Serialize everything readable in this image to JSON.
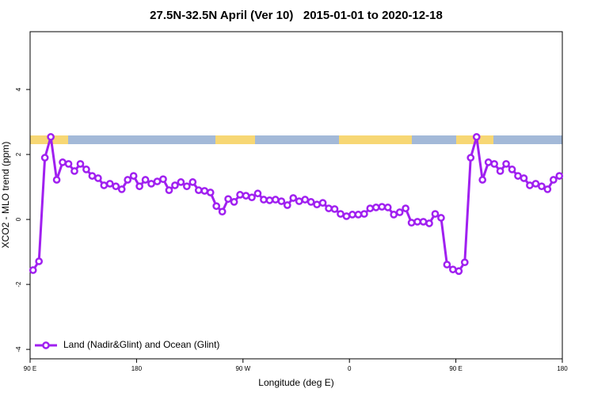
{
  "chart_data": {
    "type": "line",
    "title": "27.5N-32.5N April (Ver 10)   2015-01-01 to 2020-12-18",
    "x_label": "Longitude (deg E)",
    "y_label": "XCO2 - MLO trend (ppm)",
    "x": [
      92.5,
      97.5,
      102.5,
      107.5,
      112.5,
      117.5,
      122.5,
      127.5,
      132.5,
      137.5,
      142.5,
      147.5,
      152.5,
      157.5,
      162.5,
      167.5,
      172.5,
      177.5,
      182.5,
      187.5,
      192.5,
      197.5,
      202.5,
      207.5,
      212.5,
      217.5,
      222.5,
      227.5,
      232.5,
      237.5,
      242.5,
      247.5,
      252.5,
      257.5,
      262.5,
      267.5,
      272.5,
      277.5,
      282.5,
      287.5,
      292.5,
      297.5,
      302.5,
      307.5,
      312.5,
      317.5,
      322.5,
      327.5,
      332.5,
      337.5,
      342.5,
      347.5,
      352.5,
      357.5,
      362.5,
      367.5,
      372.5,
      377.5,
      382.5,
      387.5,
      392.5,
      397.5,
      402.5,
      407.5,
      412.5,
      417.5,
      422.5,
      427.5,
      432.5,
      437.5,
      442.5,
      447.5,
      452.5,
      457.5,
      462.5,
      467.5,
      472.5,
      477.5,
      482.5,
      487.5,
      492.5,
      497.5,
      502.5,
      507.5,
      512.5,
      517.5,
      522.5,
      527.5,
      532.5,
      537.5
    ],
    "series": [
      {
        "name": "Land (Nadir&Glint) and Ocean (Glint)",
        "color": "#a020f0",
        "values": [
          -1.56,
          -1.29,
          1.9,
          2.54,
          1.22,
          1.76,
          1.71,
          1.49,
          1.71,
          1.54,
          1.34,
          1.27,
          1.05,
          1.1,
          1.02,
          0.93,
          1.22,
          1.34,
          1.02,
          1.22,
          1.1,
          1.17,
          1.24,
          0.9,
          1.05,
          1.15,
          1.02,
          1.15,
          0.9,
          0.88,
          0.83,
          0.41,
          0.24,
          0.63,
          0.54,
          0.76,
          0.73,
          0.68,
          0.8,
          0.61,
          0.59,
          0.61,
          0.56,
          0.44,
          0.66,
          0.56,
          0.61,
          0.54,
          0.46,
          0.51,
          0.34,
          0.32,
          0.17,
          0.1,
          0.15,
          0.15,
          0.17,
          0.34,
          0.37,
          0.39,
          0.37,
          0.15,
          0.22,
          0.34,
          -0.1,
          -0.07,
          -0.07,
          -0.12,
          0.17,
          0.05,
          -1.39,
          -1.54,
          -1.59,
          -1.32,
          1.9,
          2.54,
          1.22,
          1.76,
          1.71,
          1.49,
          1.71,
          1.54,
          1.34,
          1.27,
          1.05,
          1.1,
          1.02,
          0.93,
          1.22,
          1.34
        ]
      }
    ],
    "xlim": [
      90,
      540
    ],
    "xticks": [
      {
        "value": 90,
        "label": "90 E"
      },
      180,
      {
        "value": 270,
        "label": "90 W"
      },
      {
        "value": 360,
        "label": "0"
      },
      {
        "value": 450,
        "label": "90 E"
      },
      {
        "value": 540,
        "label": "180"
      }
    ],
    "ylim": [
      -4.29,
      5.78
    ],
    "yticks": [
      -4,
      -2,
      0,
      2,
      4
    ],
    "legend": "bottom-left",
    "grid": false
  }
}
